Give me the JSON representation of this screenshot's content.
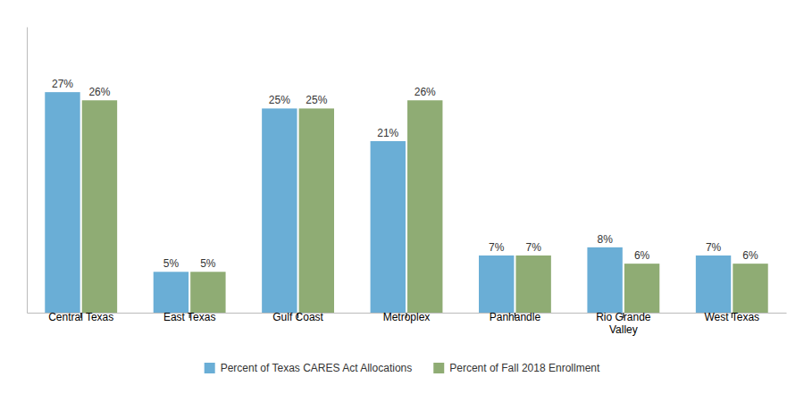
{
  "chart_data": {
    "type": "bar",
    "categories": [
      "Central Texas",
      "East Texas",
      "Gulf Coast",
      "Metroplex",
      "Panhandle",
      "Rio Grande\nValley",
      "West Texas"
    ],
    "series": [
      {
        "name": "Percent of Texas CARES Act Allocations",
        "color": "#6aaed6",
        "values": [
          27,
          5,
          25,
          21,
          7,
          8,
          7
        ],
        "value_labels": [
          "27%",
          "5%",
          "25%",
          "21%",
          "7%",
          "8%",
          "7%"
        ]
      },
      {
        "name": "Percent of Fall 2018 Enrollment",
        "color": "#8fac74",
        "values": [
          26,
          5,
          25,
          26,
          7,
          6,
          6
        ],
        "value_labels": [
          "26%",
          "5%",
          "25%",
          "26%",
          "7%",
          "6%",
          "6%"
        ]
      }
    ],
    "ylim": [
      0,
      35
    ],
    "data_labels": true,
    "tick_labels": "x",
    "legend": "bottom",
    "grid": false
  }
}
